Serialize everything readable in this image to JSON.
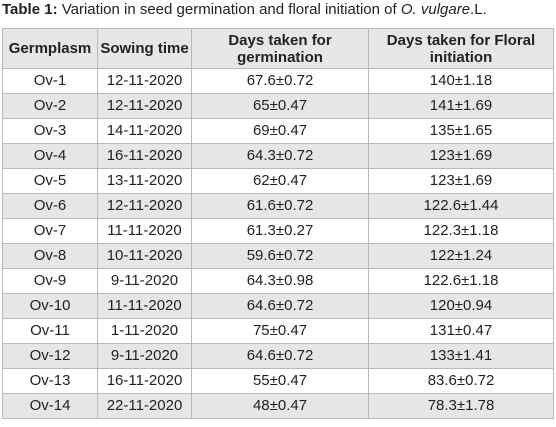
{
  "caption": {
    "label": "Table 1:",
    "text": " Variation in seed germination and floral initiation of ",
    "species": "O. vulgare",
    "suffix": ".L."
  },
  "table": {
    "headers": {
      "germplasm": "Germplasm",
      "sowing_time": "Sowing time",
      "days_germination": "Days taken for germination",
      "days_floral": "Days taken for Floral initiation"
    },
    "rows": [
      {
        "germplasm": "Ov-1",
        "sowing": "12-11-2020",
        "germination": "67.6±0.72",
        "floral": "140±1.18"
      },
      {
        "germplasm": "Ov-2",
        "sowing": "12-11-2020",
        "germination": "65±0.47",
        "floral": "141±1.69"
      },
      {
        "germplasm": "Ov-3",
        "sowing": "14-11-2020",
        "germination": "69±0.47",
        "floral": "135±1.65"
      },
      {
        "germplasm": "Ov-4",
        "sowing": "16-11-2020",
        "germination": "64.3±0.72",
        "floral": "123±1.69"
      },
      {
        "germplasm": "Ov-5",
        "sowing": "13-11-2020",
        "germination": "62±0.47",
        "floral": "123±1.69"
      },
      {
        "germplasm": "Ov-6",
        "sowing": "12-11-2020",
        "germination": "61.6±0.72",
        "floral": "122.6±1.44"
      },
      {
        "germplasm": "Ov-7",
        "sowing": "11-11-2020",
        "germination": "61.3±0.27",
        "floral": "122.3±1.18"
      },
      {
        "germplasm": "Ov-8",
        "sowing": "10-11-2020",
        "germination": "59.6±0.72",
        "floral": "122±1.24"
      },
      {
        "germplasm": "Ov-9",
        "sowing": "9-11-2020",
        "germination": "64.3±0.98",
        "floral": "122.6±1.18"
      },
      {
        "germplasm": "Ov-10",
        "sowing": "11-11-2020",
        "germination": "64.6±0.72",
        "floral": "120±0.94"
      },
      {
        "germplasm": "Ov-11",
        "sowing": "1-11-2020",
        "germination": "75±0.47",
        "floral": "131±0.47"
      },
      {
        "germplasm": "Ov-12",
        "sowing": "9-11-2020",
        "germination": "64.6±0.72",
        "floral": "133±1.41"
      },
      {
        "germplasm": "Ov-13",
        "sowing": "16-11-2020",
        "germination": "55±0.47",
        "floral": "83.6±0.72"
      },
      {
        "germplasm": "Ov-14",
        "sowing": "22-11-2020",
        "germination": "48±0.47",
        "floral": "78.3±1.78"
      }
    ]
  },
  "colors": {
    "stripe": "#e6e6e6",
    "border": "#b9b9b9",
    "text": "#222222"
  }
}
